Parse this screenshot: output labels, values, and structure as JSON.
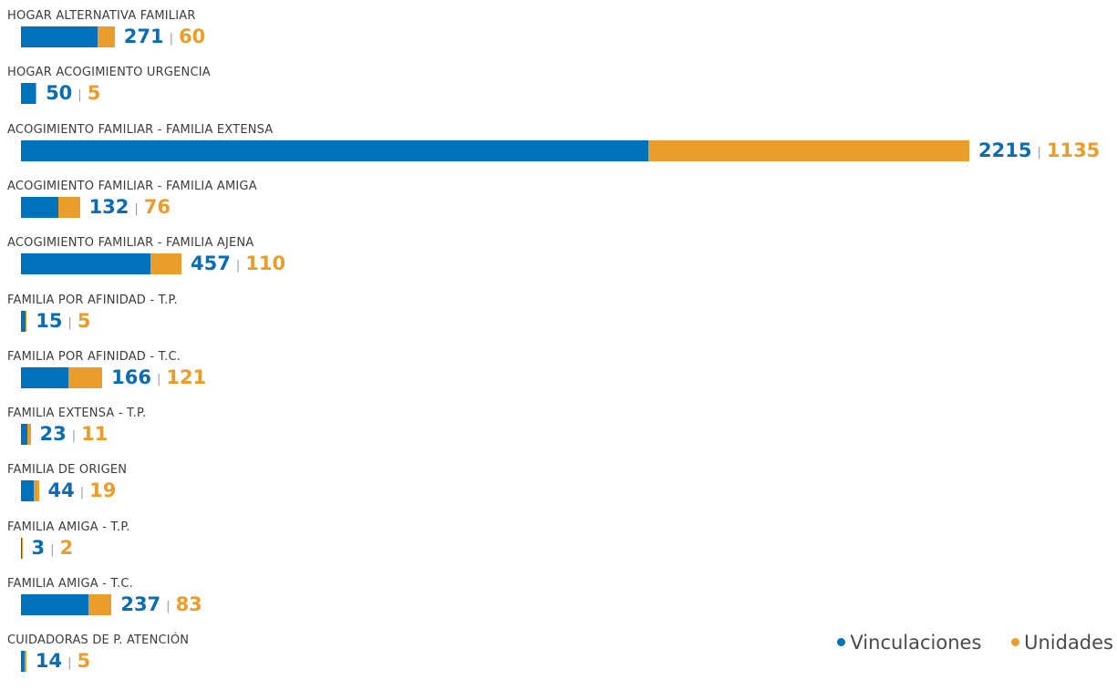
{
  "chart_data": {
    "type": "bar",
    "orientation": "horizontal",
    "stacked": true,
    "categories": [
      "HOGAR ALTERNATIVA FAMILIAR",
      "HOGAR ACOGIMIENTO URGENCIA",
      "ACOGIMIENTO FAMILIAR - FAMILIA EXTENSA",
      "ACOGIMIENTO FAMILIAR - FAMILIA AMIGA",
      "ACOGIMIENTO FAMILIAR - FAMILIA AJENA",
      "FAMILIA POR AFINIDAD - T.P.",
      "FAMILIA POR AFINIDAD - T.C.",
      "FAMILIA EXTENSA - T.P.",
      "FAMILIA DE ORIGEN",
      "FAMILIA AMIGA - T.P.",
      "FAMILIA AMIGA - T.C.",
      "CUIDADORAS DE P. ATENCIÓN"
    ],
    "series": [
      {
        "name": "Vinculaciones",
        "color": "#0072bb",
        "values": [
          271,
          50,
          2215,
          132,
          457,
          15,
          166,
          23,
          44,
          3,
          237,
          14
        ]
      },
      {
        "name": "Unidades",
        "color": "#eb9d2b",
        "values": [
          60,
          5,
          1135,
          76,
          110,
          5,
          121,
          11,
          19,
          2,
          83,
          5
        ]
      }
    ],
    "separator": "|",
    "legend_position": "bottom-right",
    "grid": false
  }
}
